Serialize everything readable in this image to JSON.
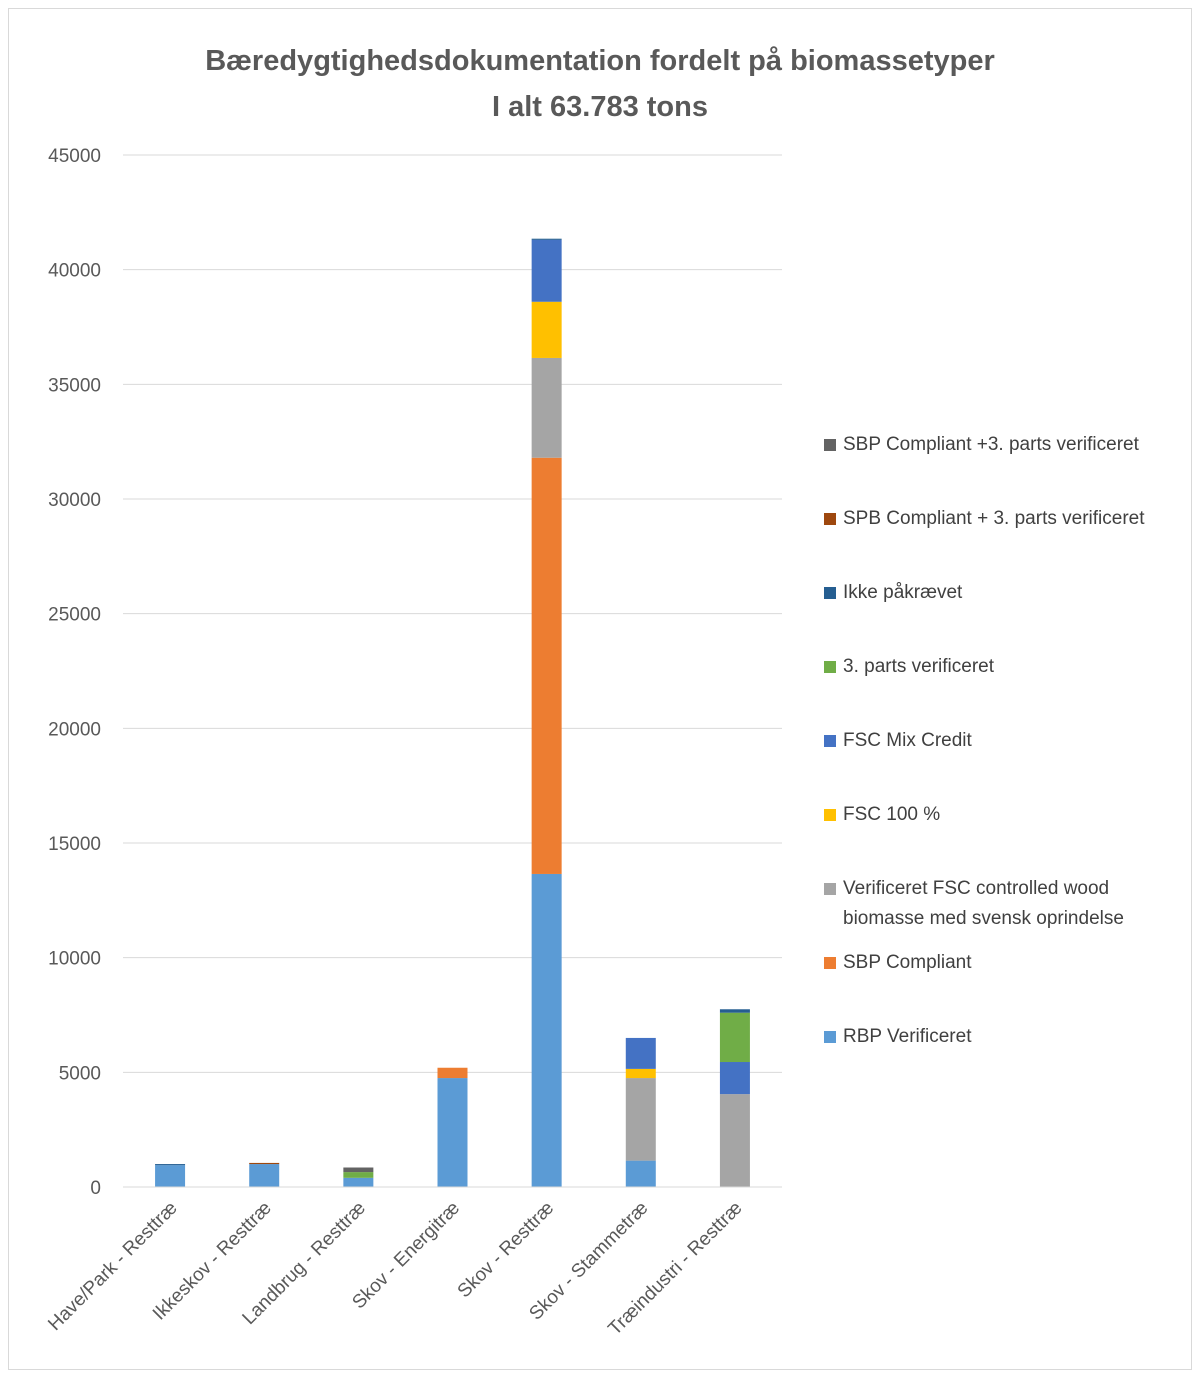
{
  "chart_data": {
    "type": "bar",
    "stacked": true,
    "title": "Bæredygtighedsdokumentation fordelt på biomassetyper",
    "subtitle": "I alt 63.783 tons",
    "xlabel": "",
    "ylabel": "",
    "ylim": [
      0,
      45000
    ],
    "yticks": [
      "0",
      "5000",
      "10000",
      "15000",
      "20000",
      "25000",
      "30000",
      "35000",
      "40000",
      "45000"
    ],
    "grid": true,
    "legend_position": "right",
    "categories": [
      "Have/Park - Resttræ",
      "Ikkeskov - Resttræ",
      "Landbrug - Resttræ",
      "Skov - Energitræ",
      "Skov - Resttræ",
      "Skov - Stammetræ",
      "Træindustri - Resttræ"
    ],
    "series": [
      {
        "name": "RBP Verificeret",
        "color": "#5b9bd5",
        "values": [
          950,
          1000,
          400,
          4750,
          13650,
          1150,
          0
        ]
      },
      {
        "name": "SBP Compliant",
        "color": "#ed7d31",
        "values": [
          0,
          0,
          0,
          450,
          18150,
          0,
          0
        ]
      },
      {
        "name": "Verificeret FSC controlled wood biomasse med svensk oprindelse",
        "color": "#a5a5a5",
        "values": [
          0,
          0,
          0,
          0,
          4350,
          3600,
          4050
        ]
      },
      {
        "name": "FSC 100 %",
        "color": "#ffc000",
        "values": [
          0,
          0,
          0,
          0,
          2450,
          400,
          0
        ]
      },
      {
        "name": "FSC Mix Credit",
        "color": "#4472c4",
        "values": [
          0,
          0,
          0,
          0,
          2700,
          1350,
          1400
        ]
      },
      {
        "name": "3. parts verificeret",
        "color": "#70ad47",
        "values": [
          0,
          0,
          250,
          0,
          0,
          0,
          2150
        ]
      },
      {
        "name": "Ikke påkrævet",
        "color": "#255e91",
        "values": [
          50,
          0,
          0,
          0,
          50,
          0,
          150
        ]
      },
      {
        "name": "SPB Compliant + 3. parts verificeret",
        "color": "#9e480e",
        "values": [
          0,
          50,
          0,
          0,
          0,
          0,
          0
        ]
      },
      {
        "name": "SBP Compliant +3. parts verificeret",
        "color": "#636363",
        "values": [
          0,
          0,
          200,
          0,
          0,
          0,
          0
        ]
      }
    ]
  }
}
